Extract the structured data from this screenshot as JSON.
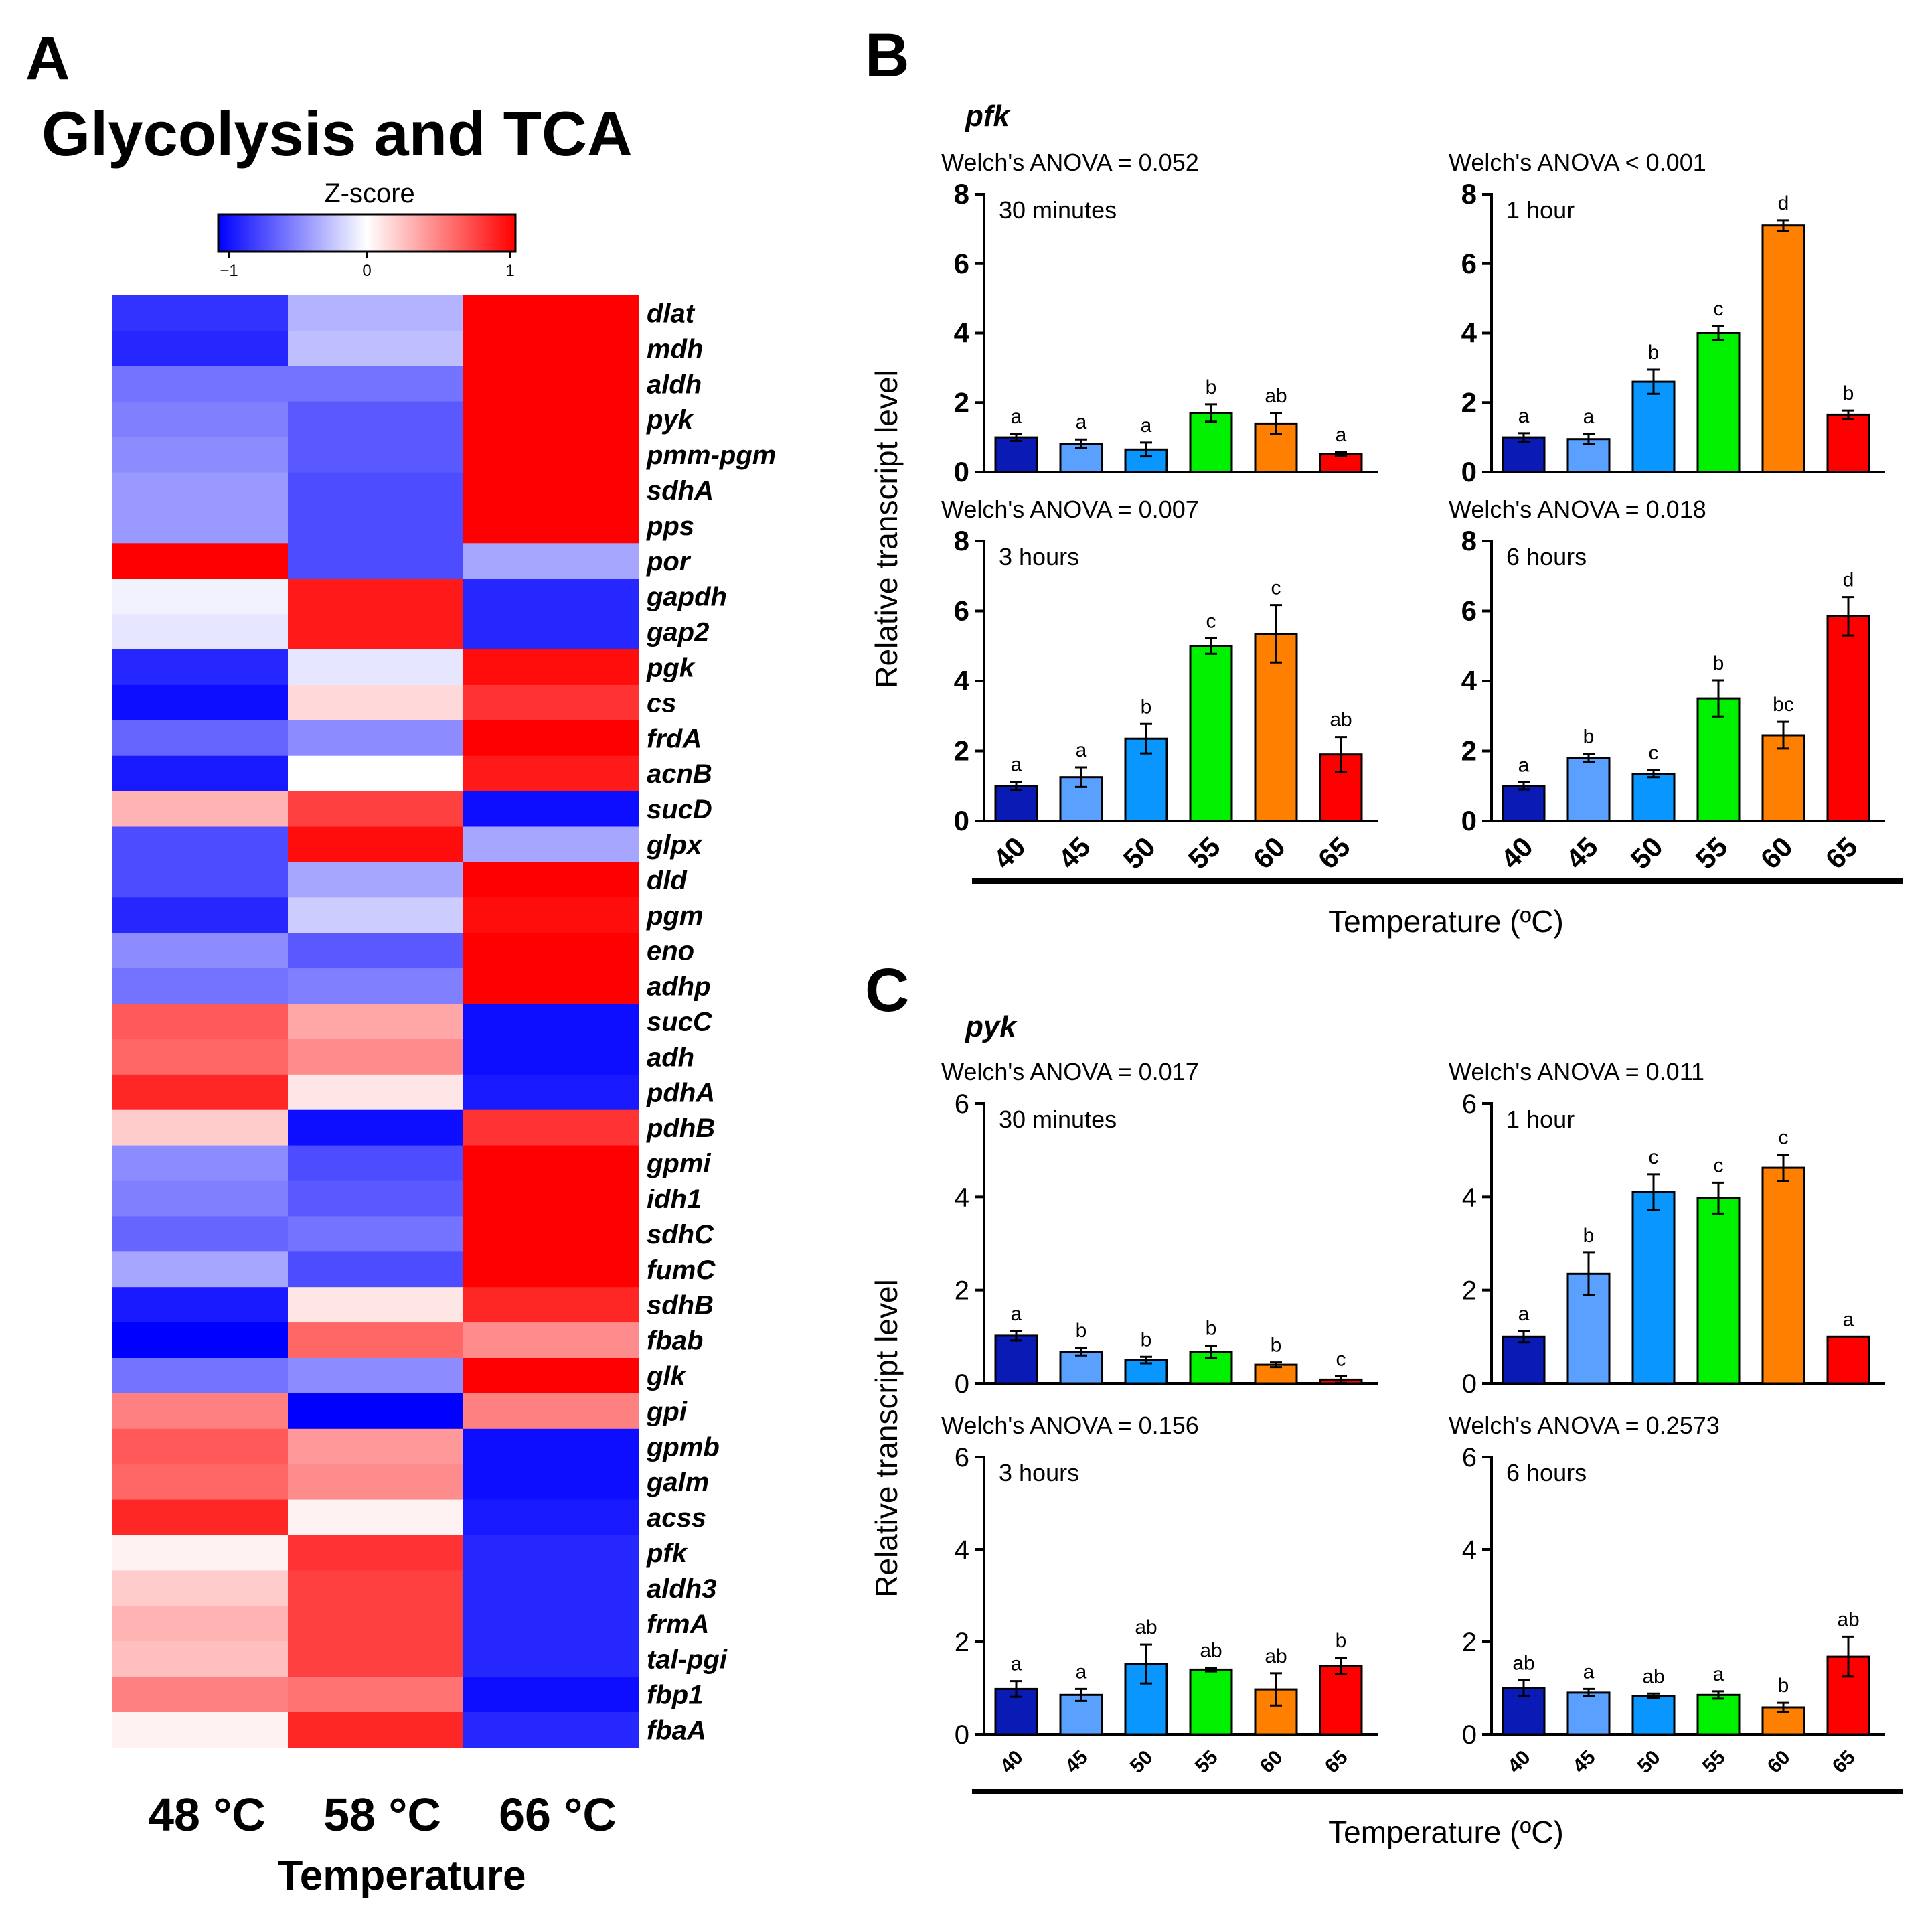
{
  "panel_a": {
    "label": "A",
    "title": "Glycolysis and TCA",
    "colorbar": {
      "title": "Z-score",
      "ticks": [
        "−1",
        "0",
        "1"
      ],
      "colors": {
        "low": "#0000ff",
        "mid": "#ffffff",
        "high": "#ff0000"
      }
    },
    "x_title": "Temperature"
  },
  "panel_b": {
    "label": "B",
    "gene": "pfk",
    "ylabel": "Relative transcript level",
    "xlabel": "Temperature (ºC)"
  },
  "panel_c": {
    "label": "C",
    "gene": "pyk",
    "ylabel": "Relative transcript level",
    "xlabel": "Temperature (ºC)"
  },
  "bar_colors": [
    "#0a1ab4",
    "#5aa0ff",
    "#0a96ff",
    "#00f000",
    "#ff8000",
    "#ff0000"
  ],
  "chart_data": [
    {
      "type": "heatmap",
      "title": "Glycolysis and TCA",
      "xlabel": "Temperature",
      "columns": [
        "48 °C",
        "58 °C",
        "66 °C"
      ],
      "rows": [
        "dlat",
        "mdh",
        "aldh",
        "pyk",
        "pmm-pgm",
        "sdhA",
        "pps",
        "por",
        "gapdh",
        "gap2",
        "pgk",
        "cs",
        "frdA",
        "acnB",
        "sucD",
        "glpx",
        "dld",
        "pgm",
        "eno",
        "adhp",
        "sucC",
        "adh",
        "pdhA",
        "pdhB",
        "gpmi",
        "idh1",
        "sdhC",
        "fumC",
        "sdhB",
        "fbab",
        "glk",
        "gpi",
        "gpmb",
        "galm",
        "acss",
        "pfk",
        "aldh3",
        "frmA",
        "tal-pgi",
        "fbp1",
        "fbaA"
      ],
      "zlim": [
        -1,
        1
      ],
      "values": [
        [
          -0.8,
          -0.3,
          1.0
        ],
        [
          -0.85,
          -0.25,
          1.0
        ],
        [
          -0.55,
          -0.55,
          1.0
        ],
        [
          -0.5,
          -0.65,
          1.0
        ],
        [
          -0.45,
          -0.65,
          1.0
        ],
        [
          -0.4,
          -0.7,
          1.0
        ],
        [
          -0.4,
          -0.7,
          1.0
        ],
        [
          1.0,
          -0.7,
          -0.35
        ],
        [
          -0.05,
          0.9,
          -0.85
        ],
        [
          -0.1,
          0.9,
          -0.85
        ],
        [
          -0.85,
          -0.1,
          0.95
        ],
        [
          -0.95,
          0.15,
          0.8
        ],
        [
          -0.6,
          -0.45,
          1.0
        ],
        [
          -0.9,
          0.0,
          0.9
        ],
        [
          0.3,
          0.75,
          -0.95
        ],
        [
          -0.7,
          0.95,
          -0.35
        ],
        [
          -0.7,
          -0.35,
          1.0
        ],
        [
          -0.85,
          -0.2,
          0.95
        ],
        [
          -0.45,
          -0.65,
          1.0
        ],
        [
          -0.55,
          -0.5,
          1.0
        ],
        [
          0.65,
          0.35,
          -0.95
        ],
        [
          0.6,
          0.45,
          -0.95
        ],
        [
          0.85,
          0.1,
          -0.9
        ],
        [
          0.2,
          -0.95,
          0.8
        ],
        [
          -0.45,
          -0.7,
          1.0
        ],
        [
          -0.5,
          -0.65,
          1.0
        ],
        [
          -0.6,
          -0.55,
          1.0
        ],
        [
          -0.35,
          -0.7,
          1.0
        ],
        [
          -0.9,
          0.1,
          0.85
        ],
        [
          -1.0,
          0.6,
          0.45
        ],
        [
          -0.55,
          -0.45,
          1.0
        ],
        [
          0.5,
          -1.0,
          0.5
        ],
        [
          0.65,
          0.4,
          -0.95
        ],
        [
          0.6,
          0.45,
          -0.95
        ],
        [
          0.85,
          0.05,
          -0.9
        ],
        [
          0.05,
          0.8,
          -0.85
        ],
        [
          0.2,
          0.75,
          -0.85
        ],
        [
          0.3,
          0.75,
          -0.85
        ],
        [
          0.25,
          0.75,
          -0.85
        ],
        [
          0.5,
          0.55,
          -0.95
        ],
        [
          0.05,
          0.85,
          -0.85
        ]
      ]
    },
    {
      "type": "bar",
      "gene": "pfk",
      "time": "30 minutes",
      "anova": "Welch's ANOVA = 0.052",
      "categories": [
        "40",
        "45",
        "50",
        "55",
        "60",
        "65"
      ],
      "values": [
        1.0,
        0.82,
        0.65,
        1.7,
        1.4,
        0.52
      ],
      "errors": [
        0.1,
        0.12,
        0.2,
        0.25,
        0.3,
        0.06
      ],
      "letters": [
        "a",
        "a",
        "a",
        "b",
        "ab",
        "a"
      ],
      "ylim": [
        0,
        8
      ],
      "yticks": [
        "0",
        "2",
        "4",
        "6",
        "8"
      ]
    },
    {
      "type": "bar",
      "gene": "pfk",
      "time": "1 hour",
      "anova": "Welch's ANOVA < 0.001",
      "categories": [
        "40",
        "45",
        "50",
        "55",
        "60",
        "65"
      ],
      "values": [
        1.0,
        0.95,
        2.6,
        4.0,
        7.1,
        1.65
      ],
      "errors": [
        0.12,
        0.15,
        0.35,
        0.2,
        0.15,
        0.12
      ],
      "letters": [
        "a",
        "a",
        "b",
        "c",
        "d",
        "b"
      ],
      "ylim": [
        0,
        8
      ],
      "yticks": [
        "0",
        "2",
        "4",
        "6",
        "8"
      ]
    },
    {
      "type": "bar",
      "gene": "pfk",
      "time": "3 hours",
      "anova": "Welch's ANOVA = 0.007",
      "categories": [
        "40",
        "45",
        "50",
        "55",
        "60",
        "65"
      ],
      "values": [
        1.0,
        1.25,
        2.35,
        5.0,
        5.35,
        1.9
      ],
      "errors": [
        0.12,
        0.28,
        0.42,
        0.22,
        0.82,
        0.5
      ],
      "letters": [
        "a",
        "a",
        "b",
        "c",
        "c",
        "ab"
      ],
      "ylim": [
        0,
        8
      ],
      "yticks": [
        "0",
        "2",
        "4",
        "6",
        "8"
      ]
    },
    {
      "type": "bar",
      "gene": "pfk",
      "time": "6 hours",
      "anova": "Welch's ANOVA = 0.018",
      "categories": [
        "40",
        "45",
        "50",
        "55",
        "60",
        "65"
      ],
      "values": [
        1.0,
        1.8,
        1.35,
        3.5,
        2.45,
        5.85
      ],
      "errors": [
        0.1,
        0.12,
        0.1,
        0.52,
        0.38,
        0.55
      ],
      "letters": [
        "a",
        "b",
        "c",
        "b",
        "bc",
        "d"
      ],
      "ylim": [
        0,
        8
      ],
      "yticks": [
        "0",
        "2",
        "4",
        "6",
        "8"
      ]
    },
    {
      "type": "bar",
      "gene": "pyk",
      "time": "30 minutes",
      "anova": "Welch's ANOVA = 0.017",
      "categories": [
        "40",
        "45",
        "50",
        "55",
        "60",
        "65"
      ],
      "values": [
        1.02,
        0.68,
        0.5,
        0.68,
        0.4,
        0.08
      ],
      "errors": [
        0.1,
        0.08,
        0.07,
        0.13,
        0.05,
        0.07
      ],
      "letters": [
        "a",
        "b",
        "b",
        "b",
        "b",
        "c"
      ],
      "ylim": [
        0,
        6
      ],
      "yticks": [
        "0",
        "2",
        "4",
        "6"
      ]
    },
    {
      "type": "bar",
      "gene": "pyk",
      "time": "1 hour",
      "anova": "Welch's ANOVA = 0.011",
      "categories": [
        "40",
        "45",
        "50",
        "55",
        "60",
        "65"
      ],
      "values": [
        1.0,
        2.35,
        4.1,
        3.97,
        4.62,
        1.0
      ],
      "errors": [
        0.12,
        0.45,
        0.38,
        0.33,
        0.28,
        0.0
      ],
      "letters": [
        "a",
        "b",
        "c",
        "c",
        "c",
        "a"
      ],
      "ylim": [
        0,
        6
      ],
      "yticks": [
        "0",
        "2",
        "4",
        "6"
      ]
    },
    {
      "type": "bar",
      "gene": "pyk",
      "time": "3 hours",
      "anova": "Welch's ANOVA = 0.156",
      "categories": [
        "40",
        "45",
        "50",
        "55",
        "60",
        "65"
      ],
      "values": [
        0.98,
        0.85,
        1.52,
        1.4,
        0.97,
        1.48
      ],
      "errors": [
        0.17,
        0.13,
        0.42,
        0.04,
        0.35,
        0.17
      ],
      "letters": [
        "a",
        "a",
        "ab",
        "ab",
        "ab",
        "b"
      ],
      "ylim": [
        0,
        6
      ],
      "yticks": [
        "0",
        "2",
        "4",
        "6"
      ]
    },
    {
      "type": "bar",
      "gene": "pyk",
      "time": "6 hours",
      "anova": "Welch's ANOVA = 0.2573",
      "categories": [
        "40",
        "45",
        "50",
        "55",
        "60",
        "65"
      ],
      "values": [
        1.0,
        0.9,
        0.83,
        0.85,
        0.58,
        1.68
      ],
      "errors": [
        0.17,
        0.08,
        0.05,
        0.08,
        0.1,
        0.43
      ],
      "letters": [
        "ab",
        "a",
        "ab",
        "a",
        "b",
        "ab"
      ],
      "ylim": [
        0,
        6
      ],
      "yticks": [
        "0",
        "2",
        "4",
        "6"
      ]
    }
  ]
}
